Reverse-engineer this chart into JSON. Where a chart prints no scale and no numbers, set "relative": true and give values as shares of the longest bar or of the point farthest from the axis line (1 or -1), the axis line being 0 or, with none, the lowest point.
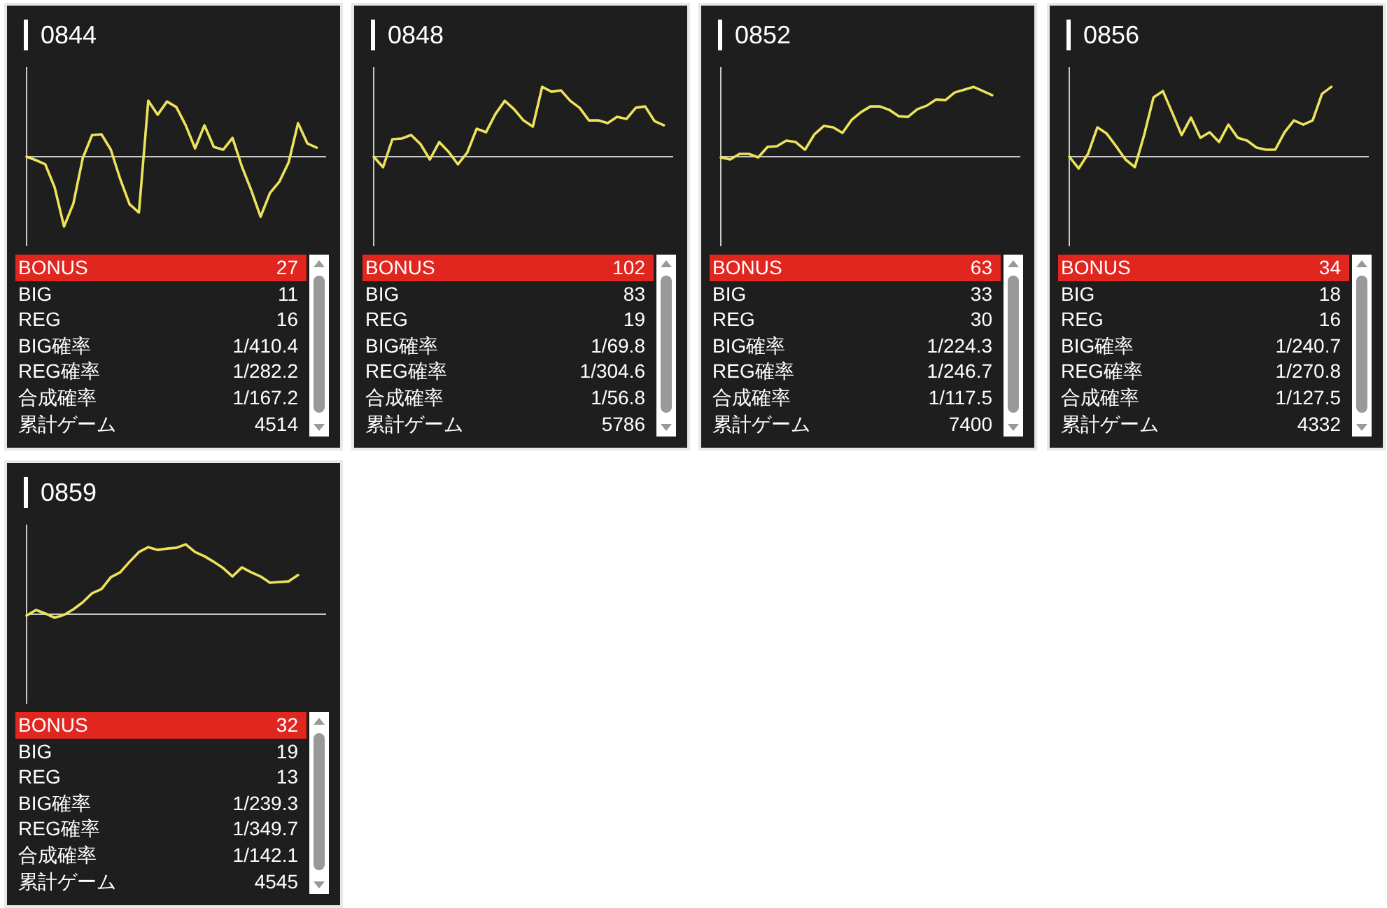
{
  "chart_data": [
    {
      "type": "line",
      "title": "0844",
      "relative": true,
      "color": "#ede35a",
      "categories": [
        null,
        null,
        null,
        null,
        null,
        null,
        null,
        null,
        null,
        null,
        null,
        null,
        null,
        null,
        null,
        null,
        null,
        null,
        null,
        null,
        null,
        null,
        null,
        null,
        null,
        null,
        null,
        null,
        null,
        null,
        null,
        null,
        null
      ],
      "values": [
        0,
        -0.05,
        -0.11,
        -0.44,
        -1,
        -0.67,
        -0.02,
        0.31,
        0.32,
        0.1,
        -0.32,
        -0.68,
        -0.8,
        0.8,
        0.6,
        0.79,
        0.71,
        0.45,
        0.12,
        0.45,
        0.14,
        0.1,
        0.27,
        -0.14,
        -0.48,
        -0.86,
        -0.52,
        -0.36,
        -0.08,
        0.48,
        0.19,
        0.13,
        null
      ]
    },
    {
      "type": "other",
      "annotations": [
        "BONUS",
        "27",
        "BIG",
        "11",
        "REG",
        "16",
        "BIG確率",
        "1/410.4",
        "REG確率",
        "1/282.2",
        "合成確率",
        "1/167.2",
        "累計ゲーム",
        "4514"
      ]
    },
    {
      "type": "line",
      "title": "0848",
      "relative": true,
      "color": "#ede35a",
      "categories": [
        null,
        null,
        null,
        null,
        null,
        null,
        null,
        null,
        null,
        null,
        null,
        null,
        null,
        null,
        null,
        null,
        null,
        null,
        null,
        null,
        null,
        null,
        null,
        null,
        null,
        null,
        null,
        null,
        null,
        null,
        null,
        null,
        null
      ],
      "values": [
        0,
        -0.15,
        0.25,
        0.26,
        0.31,
        0.18,
        -0.04,
        0.21,
        0.07,
        -0.11,
        0.06,
        0.4,
        0.35,
        0.61,
        0.8,
        0.68,
        0.52,
        0.43,
        1,
        0.93,
        0.95,
        0.8,
        0.7,
        0.52,
        0.52,
        0.48,
        0.57,
        0.54,
        0.7,
        0.72,
        0.51,
        0.45,
        null
      ]
    },
    {
      "type": "other",
      "annotations": [
        "BONUS",
        "102",
        "BIG",
        "83",
        "REG",
        "19",
        "BIG確率",
        "1/69.8",
        "REG確率",
        "1/304.6",
        "合成確率",
        "1/56.8",
        "累計ゲーム",
        "5786"
      ]
    },
    {
      "type": "line",
      "title": "0852",
      "relative": true,
      "color": "#ede35a",
      "categories": [
        null,
        null,
        null,
        null,
        null,
        null,
        null,
        null,
        null,
        null,
        null,
        null,
        null,
        null,
        null,
        null,
        null,
        null,
        null,
        null,
        null,
        null,
        null,
        null,
        null,
        null,
        null,
        null,
        null,
        null,
        null,
        null,
        null
      ],
      "values": [
        -0.01,
        -0.04,
        0.04,
        0.04,
        -0.01,
        0.14,
        0.15,
        0.23,
        0.21,
        0.1,
        0.32,
        0.44,
        0.42,
        0.34,
        0.53,
        0.64,
        0.72,
        0.72,
        0.67,
        0.58,
        0.57,
        0.68,
        0.73,
        0.82,
        0.81,
        0.92,
        0.96,
        1,
        0.94,
        0.88,
        null,
        null,
        null
      ]
    },
    {
      "type": "other",
      "annotations": [
        "BONUS",
        "63",
        "BIG",
        "33",
        "REG",
        "30",
        "BIG確率",
        "1/224.3",
        "REG確率",
        "1/246.7",
        "合成確率",
        "1/117.5",
        "累計ゲーム",
        "7400"
      ]
    },
    {
      "type": "line",
      "title": "0856",
      "relative": true,
      "color": "#ede35a",
      "categories": [
        null,
        null,
        null,
        null,
        null,
        null,
        null,
        null,
        null,
        null,
        null,
        null,
        null,
        null,
        null,
        null,
        null,
        null,
        null,
        null,
        null,
        null,
        null,
        null,
        null,
        null,
        null,
        null,
        null,
        null,
        null,
        null,
        null
      ],
      "values": [
        0,
        -0.17,
        0.04,
        0.42,
        0.33,
        0.15,
        -0.04,
        -0.15,
        0.31,
        0.85,
        0.94,
        0.63,
        0.31,
        0.56,
        0.27,
        0.35,
        0.21,
        0.46,
        0.27,
        0.23,
        0.13,
        0.1,
        0.1,
        0.35,
        0.52,
        0.46,
        0.52,
        0.9,
        1,
        null,
        null,
        null,
        null
      ]
    },
    {
      "type": "other",
      "annotations": [
        "BONUS",
        "34",
        "BIG",
        "18",
        "REG",
        "16",
        "BIG確率",
        "1/240.7",
        "REG確率",
        "1/270.8",
        "合成確率",
        "1/127.5",
        "累計ゲーム",
        "4332"
      ]
    },
    {
      "type": "line",
      "title": "0859",
      "relative": true,
      "color": "#ede35a",
      "categories": [
        null,
        null,
        null,
        null,
        null,
        null,
        null,
        null,
        null,
        null,
        null,
        null,
        null,
        null,
        null,
        null,
        null,
        null,
        null,
        null,
        null,
        null,
        null,
        null,
        null,
        null,
        null,
        null,
        null,
        null,
        null,
        null,
        null
      ],
      "values": [
        -0.02,
        0.06,
        0.01,
        -0.05,
        -0.01,
        0.07,
        0.17,
        0.3,
        0.36,
        0.53,
        0.6,
        0.75,
        0.89,
        0.96,
        0.92,
        0.94,
        0.95,
        1,
        0.89,
        0.83,
        0.75,
        0.66,
        0.54,
        0.67,
        0.6,
        0.54,
        0.45,
        0.46,
        0.47,
        0.56,
        null,
        null,
        null
      ]
    },
    {
      "type": "other",
      "annotations": [
        "BONUS",
        "32",
        "BIG",
        "19",
        "REG",
        "13",
        "BIG確率",
        "1/239.3",
        "REG確率",
        "1/349.7",
        "合成確率",
        "1/142.1",
        "累計ゲーム",
        "4545"
      ]
    }
  ]
}
